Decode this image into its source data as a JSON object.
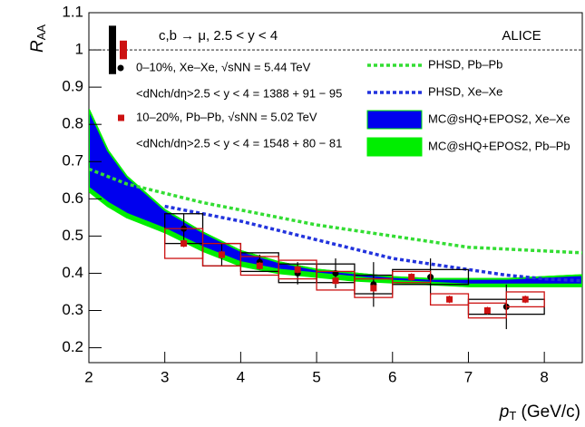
{
  "chart_data": {
    "type": "scatter",
    "title": "c,b → μ, 2.5 < y < 4",
    "experiment": "ALICE",
    "x_label": {
      "main": "p",
      "sub": "T",
      "rest": " (GeV/c)"
    },
    "y_label": {
      "main": "R",
      "sub": "AA"
    },
    "xlim": [
      2,
      8.5
    ],
    "ylim": [
      0.16,
      1.1
    ],
    "xticks": [
      2,
      3,
      4,
      5,
      6,
      7,
      8
    ],
    "yticks": [
      0.2,
      0.3,
      0.4,
      0.5,
      0.6,
      0.7,
      0.8,
      0.9,
      1,
      1.1
    ],
    "reference_line": 1,
    "models": [
      {
        "name": "MC@sHQ+EPOS2, Pb–Pb",
        "type": "band",
        "color": "#00ee00",
        "x": [
          2,
          2.25,
          2.5,
          3,
          3.5,
          4,
          4.5,
          5,
          5.5,
          6,
          6.5,
          7,
          7.5,
          8,
          8.5
        ],
        "upper": [
          0.84,
          0.73,
          0.66,
          0.57,
          0.51,
          0.46,
          0.43,
          0.41,
          0.4,
          0.39,
          0.385,
          0.385,
          0.385,
          0.39,
          0.395
        ],
        "lower": [
          0.62,
          0.58,
          0.55,
          0.51,
          0.46,
          0.42,
          0.4,
          0.39,
          0.38,
          0.375,
          0.37,
          0.365,
          0.365,
          0.365,
          0.365
        ]
      },
      {
        "name": "MC@sHQ+EPOS2, Xe–Xe",
        "type": "band",
        "color": "#0000ee",
        "x": [
          2,
          2.25,
          2.5,
          3,
          3.5,
          4,
          4.5,
          5,
          5.5,
          6,
          6.5,
          7,
          7.5,
          8,
          8.5
        ],
        "upper": [
          0.84,
          0.73,
          0.66,
          0.57,
          0.51,
          0.46,
          0.43,
          0.41,
          0.4,
          0.39,
          0.385,
          0.385,
          0.385,
          0.39,
          0.395
        ],
        "lower": [
          0.63,
          0.59,
          0.56,
          0.52,
          0.47,
          0.43,
          0.41,
          0.4,
          0.39,
          0.38,
          0.375,
          0.37,
          0.37,
          0.37,
          0.37
        ]
      },
      {
        "name": "PHSD, Xe–Xe",
        "type": "line",
        "color": "#2233dd",
        "x": [
          3,
          3.5,
          4,
          4.5,
          5,
          5.5,
          6,
          6.5,
          7,
          7.5,
          8,
          8.5
        ],
        "values": [
          0.58,
          0.56,
          0.54,
          0.515,
          0.49,
          0.465,
          0.44,
          0.425,
          0.41,
          0.395,
          0.385,
          0.38
        ]
      },
      {
        "name": "PHSD, Pb–Pb",
        "type": "line",
        "color": "#33dd33",
        "x": [
          2,
          2.5,
          3,
          3.5,
          4,
          4.5,
          5,
          5.5,
          6,
          6.5,
          7,
          7.5,
          8,
          8.5
        ],
        "values": [
          0.68,
          0.64,
          0.615,
          0.59,
          0.57,
          0.55,
          0.53,
          0.515,
          0.5,
          0.485,
          0.47,
          0.465,
          0.46,
          0.455
        ]
      }
    ],
    "series": [
      {
        "name": "0–10%, Xe–Xe, √sNN = 5.44 TeV",
        "note": "<dNch/dη>2.5 < y < 4 = 1388 + 91 − 95",
        "color": "#000000",
        "marker": "circle",
        "global_syst": 0.065,
        "x": [
          3.25,
          3.75,
          4.25,
          4.75,
          5.25,
          5.75,
          6.5,
          7.5
        ],
        "xerr": [
          0.25,
          0.25,
          0.25,
          0.25,
          0.25,
          0.25,
          0.5,
          0.5
        ],
        "values": [
          0.52,
          0.45,
          0.43,
          0.4,
          0.4,
          0.37,
          0.39,
          0.31
        ],
        "stat": [
          0.04,
          0.03,
          0.02,
          0.03,
          0.04,
          0.06,
          0.05,
          0.06
        ],
        "syst": [
          0.04,
          0.03,
          0.025,
          0.025,
          0.025,
          0.025,
          0.02,
          0.02
        ]
      },
      {
        "name": "10–20%, Pb–Pb, √sNN = 5.02 TeV",
        "note": "<dNch/dη>2.5 < y < 4 = 1548 + 80 − 81",
        "color": "#cc1111",
        "marker": "square",
        "global_syst": 0.025,
        "x": [
          3.25,
          3.75,
          4.25,
          4.75,
          5.25,
          5.75,
          6.25,
          6.75,
          7.25,
          7.75
        ],
        "xerr": [
          0.25,
          0.25,
          0.25,
          0.25,
          0.25,
          0.25,
          0.25,
          0.25,
          0.25,
          0.25
        ],
        "values": [
          0.48,
          0.45,
          0.42,
          0.41,
          0.38,
          0.36,
          0.39,
          0.33,
          0.3,
          0.33
        ],
        "stat": [
          0.01,
          0.01,
          0.01,
          0.01,
          0.01,
          0.01,
          0.01,
          0.01,
          0.01,
          0.01
        ],
        "syst": [
          0.04,
          0.03,
          0.025,
          0.025,
          0.025,
          0.025,
          0.015,
          0.015,
          0.02,
          0.02
        ]
      }
    ]
  }
}
